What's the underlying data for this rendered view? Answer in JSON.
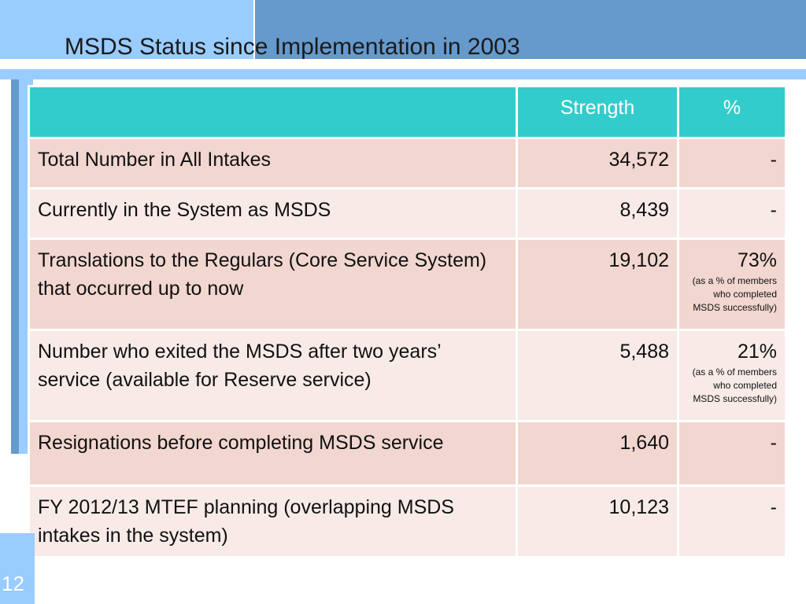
{
  "slide": {
    "title": "MSDS Status since Implementation in 2003",
    "page_number": "12"
  },
  "table": {
    "headers": {
      "label": "",
      "strength": "Strength",
      "percent": "%"
    },
    "rows": [
      {
        "label": "Total Number in All Intakes",
        "strength": "34,572",
        "percent": "-",
        "note": ""
      },
      {
        "label": "Currently in the System as MSDS",
        "strength": "8,439",
        "percent": "-",
        "note": ""
      },
      {
        "label": "Translations to the Regulars (Core Service System) that occurred up to now",
        "strength": "19,102",
        "percent": "73%",
        "note": "(as a % of members who completed MSDS successfully)"
      },
      {
        "label": "Number who exited the MSDS after two years’ service (available for Reserve service)",
        "strength": "5,488",
        "percent": "21%",
        "note": "(as a % of members who completed MSDS successfully)"
      },
      {
        "label": "Resignations before completing MSDS service",
        "strength": "1,640",
        "percent": "-",
        "note": ""
      },
      {
        "label": "FY 2012/13 MTEF planning (overlapping MSDS intakes in the system)",
        "strength": "10,123",
        "percent": "-",
        "note": ""
      }
    ]
  },
  "colors": {
    "header_bg": "#33cccc",
    "row_odd_bg": "#f2d6d0",
    "row_even_bg": "#f7eae7",
    "accent_light": "#99ccff",
    "accent_dark": "#6699cc"
  }
}
